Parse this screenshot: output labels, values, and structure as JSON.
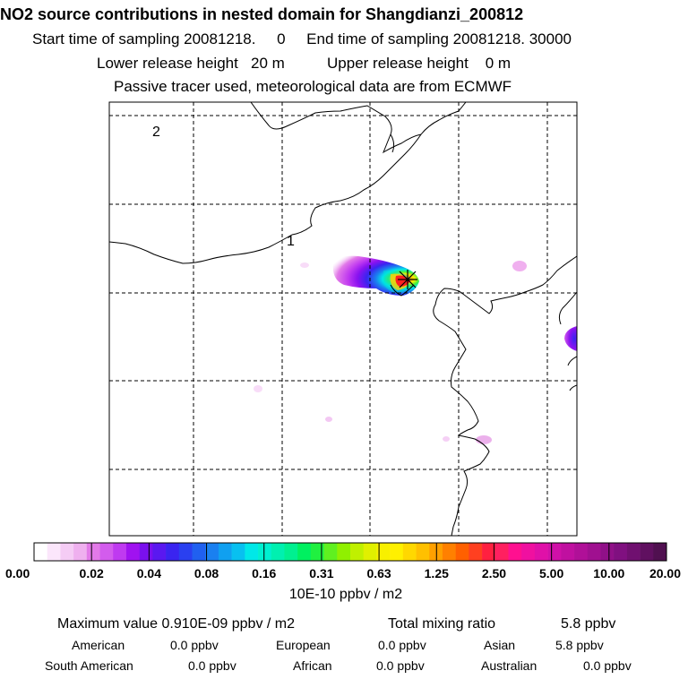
{
  "header": {
    "title": "NO2 source contributions in nested domain for Shangdianzi_200812",
    "sampling": "Start time of sampling 20081218.     0     End time of sampling 20081218. 30000",
    "release": "Lower release height   20 m          Upper release height    0 m",
    "tracer": "Passive tracer used, meteorological data are from ECMWF"
  },
  "map": {
    "region_labels": [
      "2",
      "1"
    ],
    "receptor_marker": "star-cross"
  },
  "chart_data": {
    "type": "heatmap",
    "title": "NO2 source contributions in nested domain for Shangdianzi_200812",
    "colorbar": {
      "tick_labels": [
        "0.00",
        "0.02",
        "0.04",
        "0.08",
        "0.16",
        "0.31",
        "0.63",
        "1.25",
        "2.50",
        "5.00",
        "10.00",
        "20.00"
      ],
      "unit": "10E-10 ppbv / m2",
      "colors": [
        "#ffffff",
        "#fbe6fb",
        "#f5ccf5",
        "#efb0ef",
        "#e27ae8",
        "#d35ced",
        "#bf3af0",
        "#a012f0",
        "#7a10ee",
        "#5a18f0",
        "#3a24f0",
        "#2a40f0",
        "#2060f0",
        "#1a80f0",
        "#10a0f0",
        "#08c0f0",
        "#00e8e8",
        "#00f0d0",
        "#00f0b0",
        "#00f090",
        "#00f060",
        "#20f040",
        "#60f020",
        "#90f000",
        "#c0f000",
        "#e0f000",
        "#f8f000",
        "#fff000",
        "#ffd800",
        "#ffc000",
        "#ffa000",
        "#ff8000",
        "#ff6000",
        "#ff4020",
        "#ff2040",
        "#ff2060",
        "#ff1090",
        "#f010a0",
        "#e010a8",
        "#d010a8",
        "#c010a0",
        "#b01098",
        "#a01090",
        "#901088",
        "#801080",
        "#701070",
        "#601060",
        "#501050"
      ]
    },
    "hotspots": [
      {
        "name": "main-plume",
        "level": "max"
      },
      {
        "name": "east-edge",
        "level": "high"
      }
    ]
  },
  "stats": {
    "max_label": "Maximum value  0.910E-09 ppbv / m2",
    "total_label": "Total mixing ratio",
    "total_value": "5.8 ppbv"
  },
  "regions": [
    {
      "name": "American",
      "value": "0.0 ppbv"
    },
    {
      "name": "European",
      "value": "0.0 ppbv"
    },
    {
      "name": "Asian",
      "value": "5.8 ppbv"
    },
    {
      "name": "South American",
      "value": "0.0 ppbv"
    },
    {
      "name": "African",
      "value": "0.0 ppbv"
    },
    {
      "name": "Australian",
      "value": "0.0 ppbv"
    }
  ]
}
